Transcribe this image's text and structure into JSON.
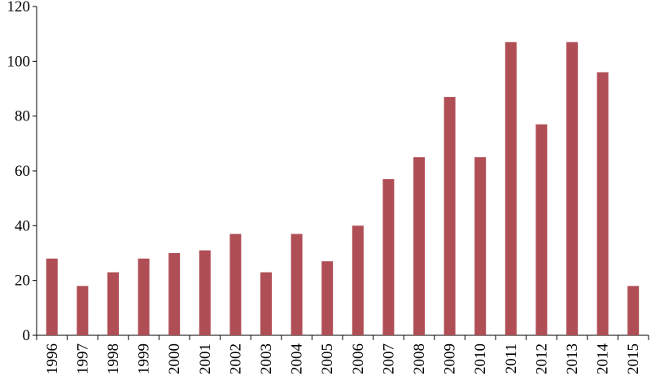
{
  "chart_data": {
    "type": "bar",
    "title": "",
    "xlabel": "",
    "ylabel": "",
    "ylim": [
      0,
      120
    ],
    "yticks": [
      0,
      20,
      40,
      60,
      80,
      100,
      120
    ],
    "grid": false,
    "bar_color": "#b04e55",
    "categories": [
      "1996",
      "1997",
      "1998",
      "1999",
      "2000",
      "2001",
      "2002",
      "2003",
      "2004",
      "2005",
      "2006",
      "2007",
      "2008",
      "2009",
      "2010",
      "2011",
      "2012",
      "2013",
      "2014",
      "2015"
    ],
    "values": [
      28,
      18,
      23,
      28,
      30,
      31,
      37,
      23,
      37,
      27,
      40,
      57,
      65,
      87,
      65,
      107,
      77,
      107,
      96,
      18
    ]
  }
}
